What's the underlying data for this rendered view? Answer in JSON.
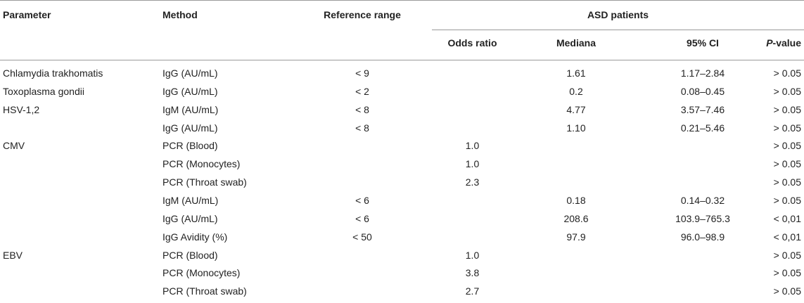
{
  "headers": {
    "parameter": "Parameter",
    "method": "Method",
    "reference_range": "Reference range",
    "group": "ASD patients",
    "odds_ratio": "Odds ratio",
    "mediana": "Mediana",
    "ci": "95% CI",
    "p_italic": "P",
    "p_rest": "-value"
  },
  "rows": [
    {
      "parameter": "Chlamydia trakhomatis",
      "method": "IgG (AU/mL)",
      "reference_range": "< 9",
      "odds_ratio": "",
      "mediana": "1.61",
      "ci": "1.17–2.84",
      "p": "> 0.05"
    },
    {
      "parameter": "Toxoplasma gondii",
      "method": "IgG (AU/mL)",
      "reference_range": "< 2",
      "odds_ratio": "",
      "mediana": "0.2",
      "ci": "0.08–0.45",
      "p": "> 0.05"
    },
    {
      "parameter": "HSV-1,2",
      "method": "IgM (AU/mL)",
      "reference_range": "< 8",
      "odds_ratio": "",
      "mediana": "4.77",
      "ci": "3.57–7.46",
      "p": "> 0.05"
    },
    {
      "parameter": "",
      "method": "IgG (AU/mL)",
      "reference_range": "< 8",
      "odds_ratio": "",
      "mediana": "1.10",
      "ci": "0.21–5.46",
      "p": "> 0.05"
    },
    {
      "parameter": "CMV",
      "method": "PCR (Blood)",
      "reference_range": "",
      "odds_ratio": "1.0",
      "mediana": "",
      "ci": "",
      "p": "> 0.05"
    },
    {
      "parameter": "",
      "method": "PCR (Monocytes)",
      "reference_range": "",
      "odds_ratio": "1.0",
      "mediana": "",
      "ci": "",
      "p": "> 0.05"
    },
    {
      "parameter": "",
      "method": "PCR (Throat swab)",
      "reference_range": "",
      "odds_ratio": "2.3",
      "mediana": "",
      "ci": "",
      "p": "> 0.05"
    },
    {
      "parameter": "",
      "method": "IgM (AU/mL)",
      "reference_range": "< 6",
      "odds_ratio": "",
      "mediana": "0.18",
      "ci": "0.14–0.32",
      "p": "> 0.05"
    },
    {
      "parameter": "",
      "method": "IgG (AU/mL)",
      "reference_range": "< 6",
      "odds_ratio": "",
      "mediana": "208.6",
      "ci": "103.9–765.3",
      "p": "< 0,01"
    },
    {
      "parameter": "",
      "method": "IgG Avidity (%)",
      "reference_range": "< 50",
      "odds_ratio": "",
      "mediana": "97.9",
      "ci": "96.0–98.9",
      "p": "< 0,01"
    },
    {
      "parameter": "EBV",
      "method": "PCR (Blood)",
      "reference_range": "",
      "odds_ratio": "1.0",
      "mediana": "",
      "ci": "",
      "p": "> 0.05"
    },
    {
      "parameter": "",
      "method": "PCR (Monocytes)",
      "reference_range": "",
      "odds_ratio": "3.8",
      "mediana": "",
      "ci": "",
      "p": "> 0.05"
    },
    {
      "parameter": "",
      "method": "PCR (Throat swab)",
      "reference_range": "",
      "odds_ratio": "2.7",
      "mediana": "",
      "ci": "",
      "p": "> 0.05"
    }
  ]
}
